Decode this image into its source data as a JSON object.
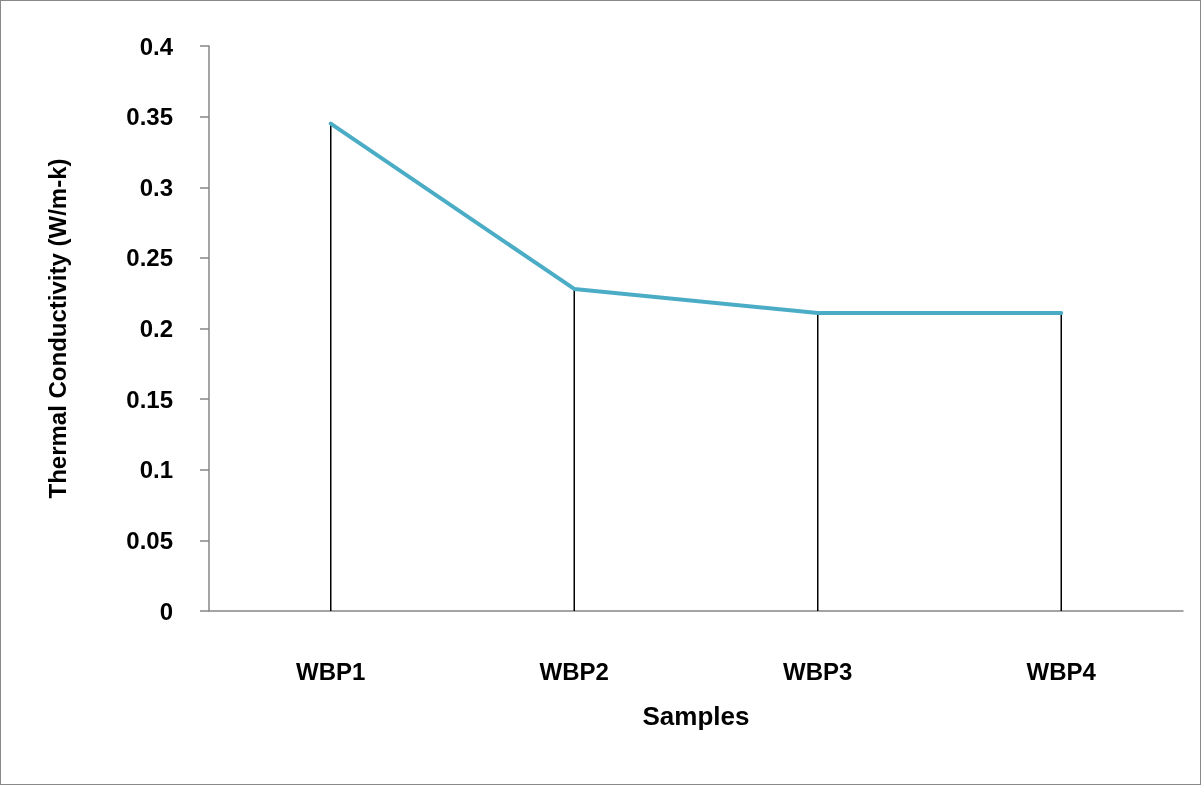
{
  "chart_data": {
    "type": "line",
    "xlabel": "Samples",
    "ylabel": "Thermal Conductivity (W/m-k)",
    "categories": [
      "WBP1",
      "WBP2",
      "WBP3",
      "WBP4"
    ],
    "series": [
      {
        "color": "#4bacc6",
        "values": [
          0.345,
          0.228,
          0.211,
          0.211
        ]
      },
      {
        "type": "bar",
        "color": "#000000",
        "values": [
          0.345,
          0.228,
          0.211,
          0.211
        ]
      }
    ],
    "ylim": [
      0,
      0.4
    ],
    "yticks": [
      0,
      0.05,
      0.1,
      0.15,
      0.2,
      0.25,
      0.3,
      0.35,
      0.4
    ],
    "grid": false,
    "marker": "none",
    "line_style": "solid"
  }
}
